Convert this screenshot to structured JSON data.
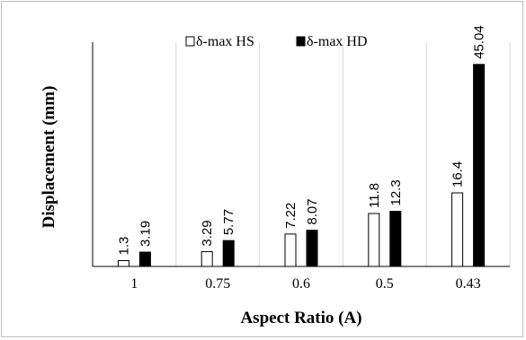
{
  "chart_data": {
    "type": "bar",
    "categories": [
      "1",
      "0.75",
      "0.6",
      "0.5",
      "0.43"
    ],
    "series": [
      {
        "name": "δ-max HS",
        "values": [
          1.3,
          3.29,
          7.22,
          11.8,
          16.4
        ],
        "value_labels": [
          "1.3",
          "3.29",
          "7.22",
          "11.8",
          "16.4"
        ],
        "fill": "#ffffff",
        "stroke": "#000000"
      },
      {
        "name": "δ-max HD",
        "values": [
          3.19,
          5.77,
          8.07,
          12.3,
          45.04
        ],
        "value_labels": [
          "3.19",
          "5.77",
          "8.07",
          "12.3",
          "45.04"
        ],
        "fill": "#000000",
        "stroke": "#000000"
      }
    ],
    "xlabel": "Aspect Ratio (A)",
    "ylabel": "Displacement (mm)",
    "ylim": [
      0,
      50
    ],
    "grid": "vertical",
    "legend_position": "top-center"
  }
}
